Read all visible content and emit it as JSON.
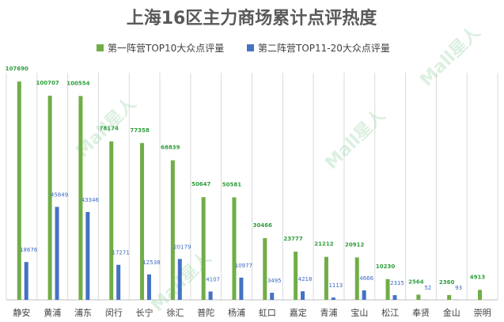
{
  "chart_data": {
    "type": "bar",
    "title": "上海16区主力商场累计点评热度",
    "watermark": "Mall星人",
    "categories": [
      "静安",
      "黄浦",
      "浦东",
      "闵行",
      "长宁",
      "徐汇",
      "普陀",
      "杨浦",
      "虹口",
      "嘉定",
      "青浦",
      "宝山",
      "松江",
      "奉贤",
      "金山",
      "崇明"
    ],
    "series": [
      {
        "name": "第一阵营TOP10大众点评量",
        "color": "#70ad47",
        "values": [
          107690,
          100707,
          100554,
          78174,
          77358,
          68839,
          50647,
          50581,
          30466,
          23777,
          21212,
          20912,
          10230,
          2564,
          2360,
          4913
        ],
        "labels": [
          "107690",
          "100707",
          "100554",
          "78174",
          "77358",
          "68839",
          "50647",
          "50581",
          "30466",
          "23777",
          "21212",
          "20912",
          "10230",
          "2564",
          "2360",
          "4913"
        ]
      },
      {
        "name": "第二阵营TOP11-20大众点评量",
        "color": "#4472c4",
        "values": [
          18676,
          45849,
          43346,
          17271,
          12538,
          20179,
          4107,
          10977,
          3495,
          4218,
          1113,
          4666,
          2315,
          52,
          93,
          0
        ],
        "labels": [
          "18676",
          "45849",
          "43346",
          "17271",
          "12538",
          "20179",
          "4107",
          "10977",
          "3495",
          "4218",
          "1113",
          "4666",
          "2315",
          "52",
          "93",
          ""
        ]
      }
    ],
    "ylim": [
      0,
      112000
    ],
    "grid": true,
    "legend": "top-center"
  }
}
